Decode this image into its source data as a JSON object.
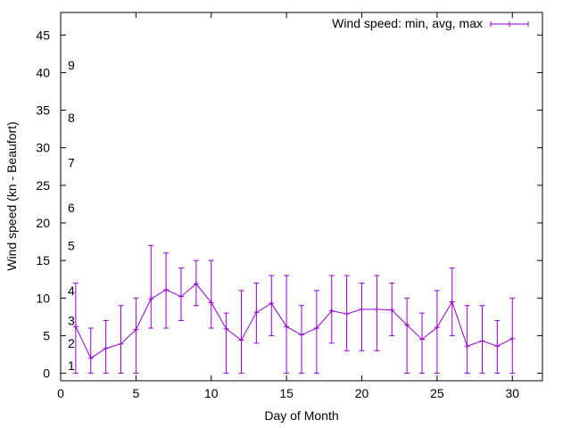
{
  "chart_data": {
    "type": "line",
    "title": "",
    "xlabel": "Day of Month",
    "ylabel": "Wind speed (kn - Beaufort)",
    "xlim": [
      0,
      32
    ],
    "ylim": [
      -1,
      48
    ],
    "xticks": [
      0,
      5,
      10,
      15,
      20,
      25,
      30
    ],
    "yticks": [
      0,
      5,
      10,
      15,
      20,
      25,
      30,
      35,
      40,
      45
    ],
    "grid": false,
    "legend_position": "top-right",
    "color": "#9400d3",
    "beaufort_labels": [
      {
        "label": "1",
        "y": 1
      },
      {
        "label": "2",
        "y": 4
      },
      {
        "label": "3",
        "y": 7
      },
      {
        "label": "4",
        "y": 11
      },
      {
        "label": "5",
        "y": 17
      },
      {
        "label": "6",
        "y": 22
      },
      {
        "label": "7",
        "y": 28
      },
      {
        "label": "8",
        "y": 34
      },
      {
        "label": "9",
        "y": 41
      }
    ],
    "series": [
      {
        "name": "Wind speed: min, avg, max",
        "x": [
          1,
          2,
          3,
          4,
          5,
          6,
          7,
          8,
          9,
          10,
          11,
          12,
          13,
          14,
          15,
          16,
          17,
          18,
          19,
          20,
          21,
          22,
          23,
          24,
          25,
          26,
          27,
          28,
          29,
          30
        ],
        "min": [
          0,
          0,
          0,
          0,
          0,
          6,
          6,
          7,
          9,
          6,
          0,
          0,
          4,
          5,
          0,
          0,
          0,
          4,
          3,
          3,
          3,
          5,
          0,
          0,
          0,
          5,
          0,
          0,
          0,
          0
        ],
        "avg": [
          6.2,
          2.0,
          3.3,
          3.9,
          5.8,
          9.9,
          11.1,
          10.2,
          11.9,
          9.4,
          5.9,
          4.4,
          8.1,
          9.3,
          6.2,
          5.1,
          6.0,
          8.3,
          7.9,
          8.5,
          8.5,
          8.4,
          6.4,
          4.5,
          6.1,
          9.5,
          3.6,
          4.3,
          3.6,
          4.6
        ],
        "max": [
          12,
          6,
          7,
          9,
          10,
          17,
          16,
          14,
          15,
          15,
          8,
          11,
          12,
          13,
          13,
          9,
          11,
          13,
          13,
          12,
          13,
          12,
          10,
          8,
          11,
          14,
          9,
          9,
          7,
          10
        ]
      }
    ]
  }
}
